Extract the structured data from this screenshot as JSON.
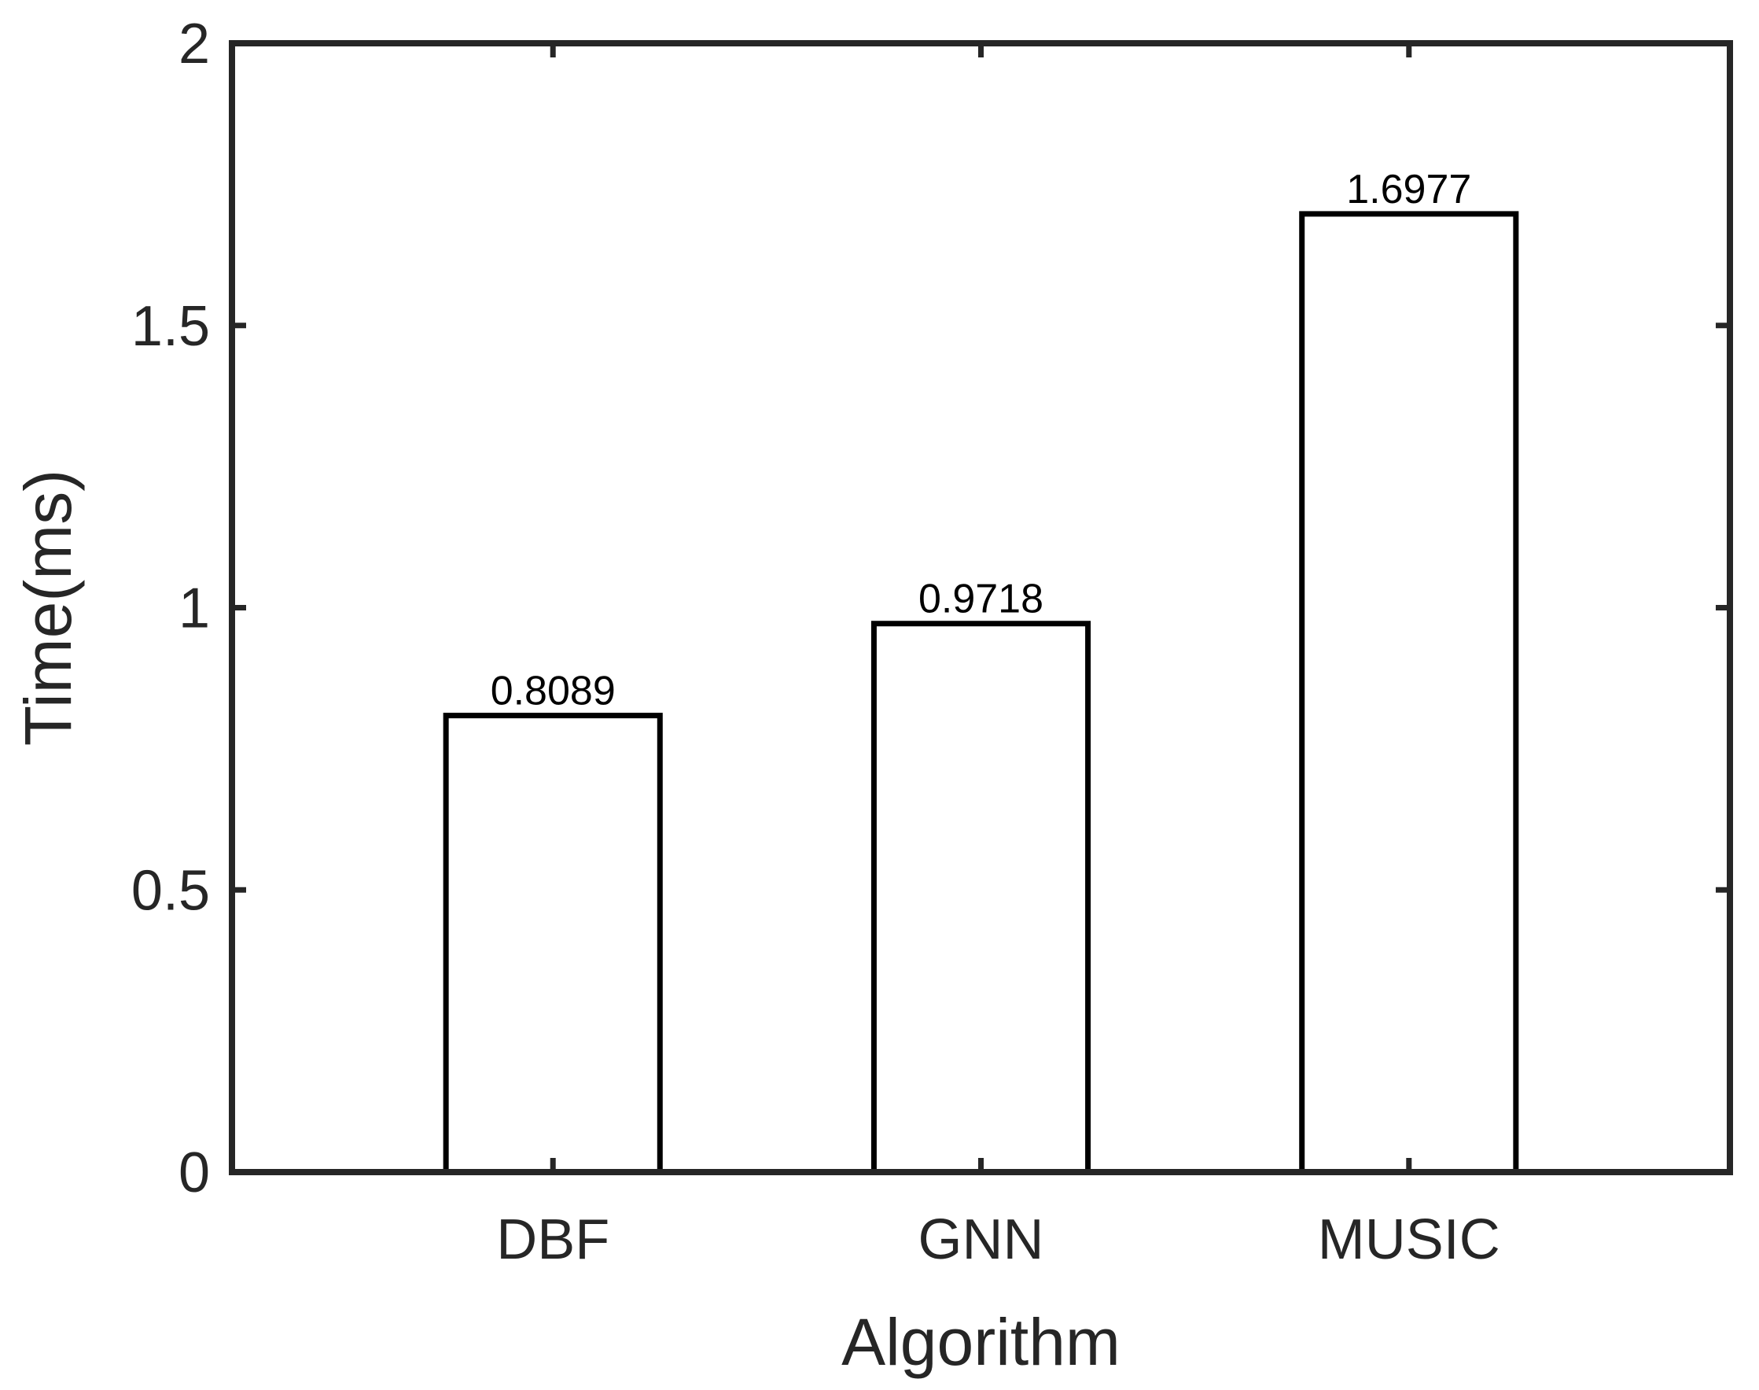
{
  "chart_data": {
    "type": "bar",
    "title": "",
    "xlabel": "Algorithm",
    "ylabel": "Time(ms)",
    "categories": [
      "DBF",
      "GNN",
      "MUSIC"
    ],
    "values": [
      0.8089,
      0.9718,
      1.6977
    ],
    "data_labels": [
      "0.8089",
      "0.9718",
      "1.6977"
    ],
    "ylim": [
      0,
      2
    ],
    "yticks": [
      0,
      0.5,
      1,
      1.5,
      2
    ],
    "ytick_labels": [
      "0",
      "0.5",
      "1",
      "1.5",
      "2"
    ],
    "xlim": [
      0.25,
      3.75
    ],
    "grid": false,
    "bar_fill": "#ffffff",
    "bar_edge": "#000000",
    "axis_color": "#262626"
  }
}
